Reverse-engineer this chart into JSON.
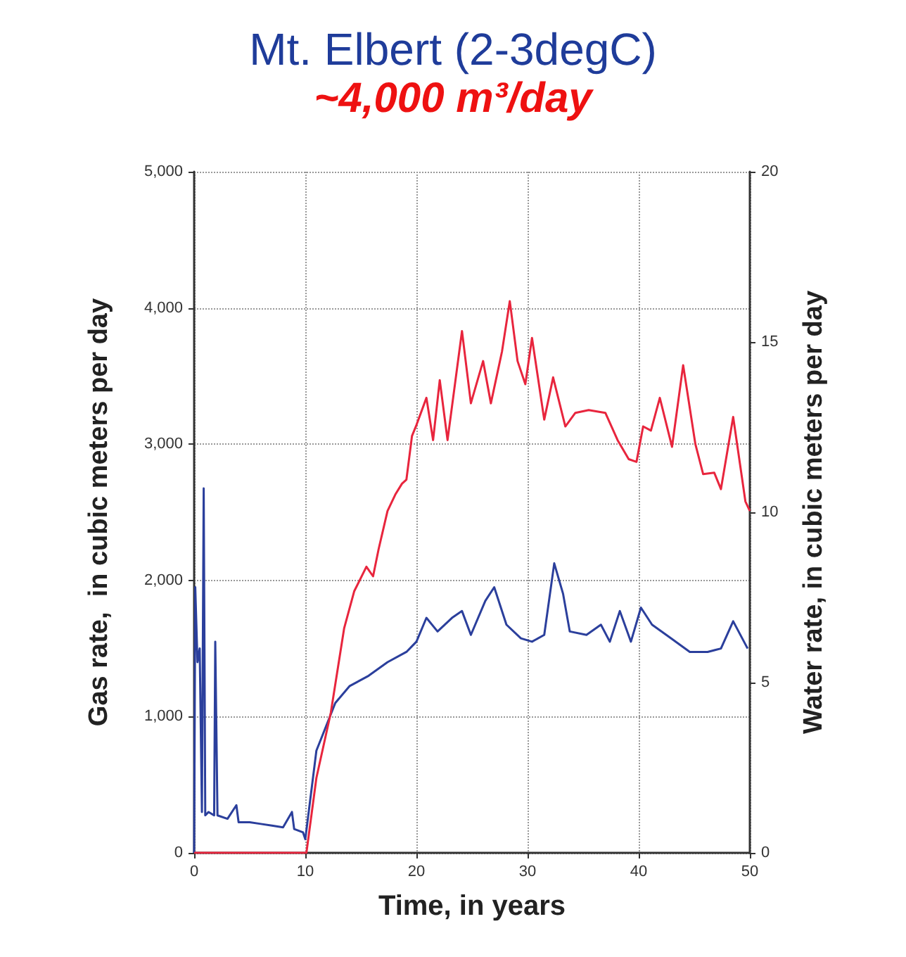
{
  "chart_data": {
    "type": "line",
    "title": "Mt. Elbert (2-3degC)",
    "subtitle": "~4,000 m³/day",
    "xlabel": "Time, in years",
    "ylabel": "Gas rate,  in cubic meters per day",
    "y2label": "Water rate, in cubic meters per day",
    "xlim": [
      0,
      50
    ],
    "xticks": [
      0,
      10,
      20,
      30,
      40,
      50
    ],
    "ylim": [
      0,
      5000
    ],
    "yticks": [
      0,
      {
        "value": 1000,
        "label": "1,000"
      },
      {
        "value": 2000,
        "label": "2,000"
      },
      {
        "value": 3000,
        "label": "3,000"
      },
      {
        "value": 4000,
        "label": "4,000"
      },
      {
        "value": 5000,
        "label": "5,000"
      }
    ],
    "y2lim": [
      0,
      20
    ],
    "y2ticks": [
      0,
      5,
      10,
      15,
      20
    ],
    "grid": true,
    "marker": "none",
    "line_style": "solid",
    "series": [
      {
        "color": "#e8253d",
        "x": [
          0,
          5,
          10,
          10.1,
          11,
          12.3,
          13.5,
          14.4,
          15.5,
          16.1,
          16.6,
          17.4,
          18.1,
          18.7,
          19.1,
          19.6,
          20,
          20.9,
          21.5,
          22.1,
          22.8,
          24.1,
          24.9,
          26,
          26.7,
          27.7,
          28.4,
          29.1,
          29.8,
          30.4,
          31.5,
          32.3,
          33.4,
          34.3,
          35.5,
          37,
          38.1,
          39.1,
          39.8,
          40.4,
          41.1,
          41.9,
          43,
          44,
          45.1,
          45.8,
          46.8,
          47.4,
          48.5,
          49.6,
          50
        ],
        "values": [
          0,
          0,
          0,
          0,
          550,
          1030,
          1650,
          1920,
          2100,
          2030,
          2230,
          2510,
          2630,
          2710,
          2740,
          3060,
          3140,
          3340,
          3030,
          3470,
          3030,
          3830,
          3300,
          3610,
          3300,
          3680,
          4050,
          3610,
          3440,
          3780,
          3180,
          3490,
          3130,
          3230,
          3250,
          3230,
          3030,
          2890,
          2870,
          3130,
          3100,
          3340,
          2980,
          3580,
          3000,
          2780,
          2790,
          2670,
          3200,
          2580,
          2510
        ]
      },
      {
        "color": "#2b3f9c",
        "axis": "y2",
        "x": [
          0,
          0.1,
          0.3,
          0.5,
          0.7,
          0.86,
          1.0,
          1.3,
          1.8,
          1.9,
          2.1,
          3,
          3.8,
          4,
          5,
          6,
          7,
          8,
          8.8,
          9,
          9.8,
          10,
          11,
          12.7,
          14,
          15.7,
          17.4,
          19.1,
          20,
          20.9,
          21.9,
          23.2,
          24.1,
          24.9,
          26.2,
          27,
          28.1,
          29.4,
          30.4,
          31.5,
          32.4,
          33.2,
          33.8,
          35.3,
          36.6,
          37.4,
          38.3,
          39.3,
          40.2,
          41.2,
          42.9,
          44.6,
          46.2,
          47.4,
          48.5,
          49.8
        ],
        "values": [
          0,
          7.8,
          5.6,
          6.0,
          1.2,
          10.7,
          1.1,
          1.2,
          1.1,
          6.2,
          1.1,
          1.0,
          1.4,
          0.9,
          0.9,
          0.85,
          0.8,
          0.75,
          1.2,
          0.7,
          0.6,
          0.4,
          3.0,
          4.4,
          4.9,
          5.2,
          5.6,
          5.9,
          6.2,
          6.9,
          6.5,
          6.9,
          7.1,
          6.4,
          7.4,
          7.8,
          6.7,
          6.3,
          6.2,
          6.4,
          8.5,
          7.6,
          6.5,
          6.4,
          6.7,
          6.2,
          7.1,
          6.2,
          7.2,
          6.7,
          6.3,
          5.9,
          5.9,
          6.0,
          6.8,
          6.0
        ]
      }
    ]
  }
}
